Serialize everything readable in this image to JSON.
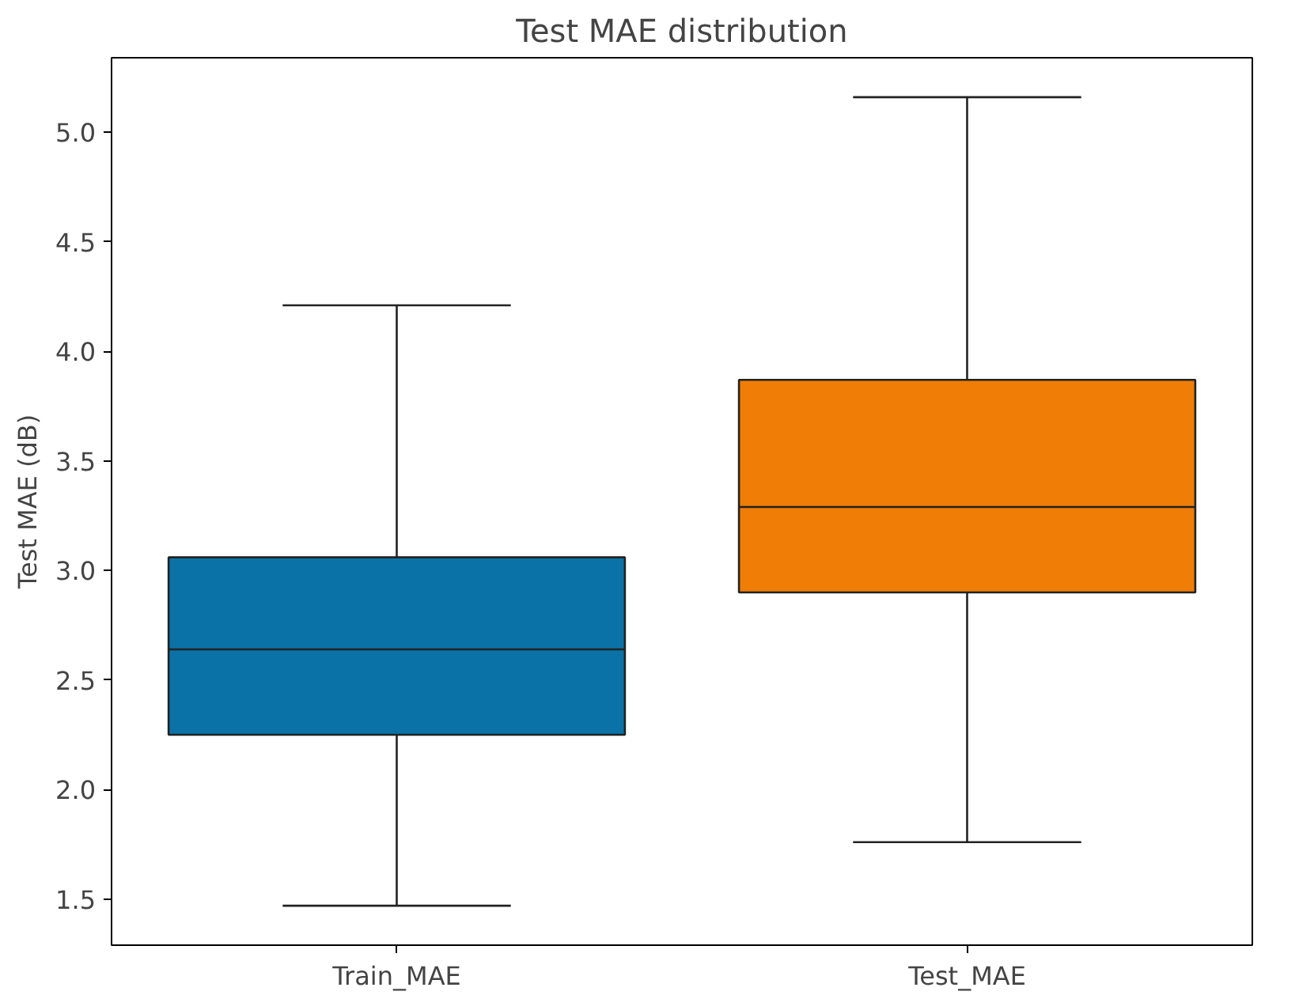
{
  "chart_data": {
    "type": "box",
    "title": "Test MAE distribution",
    "ylabel": "Test MAE (dB)",
    "categories": [
      "Train_MAE",
      "Test_MAE"
    ],
    "colors": [
      "#0a72a6",
      "#ef7d06"
    ],
    "boxes": [
      {
        "low": 1.47,
        "q1": 2.25,
        "median": 2.64,
        "q3": 3.06,
        "high": 4.21
      },
      {
        "low": 1.76,
        "q1": 2.9,
        "median": 3.29,
        "q3": 3.87,
        "high": 5.16
      }
    ],
    "ylim": [
      1.29,
      5.34
    ],
    "yticks": [
      1.5,
      {
        "value": 2,
        "label": "2.0"
      },
      2.5,
      {
        "value": 3,
        "label": "3.0"
      },
      3.5,
      {
        "value": 4,
        "label": "4.0"
      },
      4.5,
      {
        "value": 5,
        "label": "5.0"
      }
    ],
    "grid": false
  }
}
